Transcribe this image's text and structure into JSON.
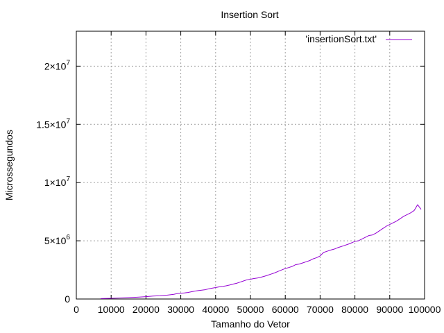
{
  "chart_data": {
    "type": "line",
    "title": "Insertion Sort",
    "xlabel": "Tamanho do Vetor",
    "ylabel": "Microssegundos",
    "xlim": [
      0,
      100000
    ],
    "ylim": [
      0,
      23000000
    ],
    "grid": true,
    "legend_position": "top-right",
    "x_ticks": [
      {
        "value": 0,
        "label": "0"
      },
      {
        "value": 10000,
        "label": "10000"
      },
      {
        "value": 20000,
        "label": "20000"
      },
      {
        "value": 30000,
        "label": "30000"
      },
      {
        "value": 40000,
        "label": "40000"
      },
      {
        "value": 50000,
        "label": "50000"
      },
      {
        "value": 60000,
        "label": "60000"
      },
      {
        "value": 70000,
        "label": "70000"
      },
      {
        "value": 80000,
        "label": "80000"
      },
      {
        "value": 90000,
        "label": "90000"
      },
      {
        "value": 100000,
        "label": "100000"
      }
    ],
    "y_ticks": [
      {
        "value": 0,
        "mantissa": "0",
        "exponent": ""
      },
      {
        "value": 5000000,
        "mantissa": "5×10",
        "exponent": "6"
      },
      {
        "value": 10000000,
        "mantissa": "1×10",
        "exponent": "7"
      },
      {
        "value": 15000000,
        "mantissa": "1.5×10",
        "exponent": "7"
      },
      {
        "value": 20000000,
        "mantissa": "2×10",
        "exponent": "7"
      }
    ],
    "series": [
      {
        "name": "'insertionSort.txt'",
        "color": "#9400d3",
        "points": [
          [
            7000,
            40000
          ],
          [
            10000,
            60000
          ],
          [
            12000,
            80000
          ],
          [
            15000,
            120000
          ],
          [
            18000,
            160000
          ],
          [
            20000,
            200000
          ],
          [
            22000,
            250000
          ],
          [
            24000,
            280000
          ],
          [
            26000,
            330000
          ],
          [
            28000,
            400000
          ],
          [
            29000,
            470000
          ],
          [
            30000,
            500000
          ],
          [
            31000,
            520000
          ],
          [
            32000,
            560000
          ],
          [
            33000,
            620000
          ],
          [
            34000,
            680000
          ],
          [
            35000,
            720000
          ],
          [
            36000,
            760000
          ],
          [
            37000,
            800000
          ],
          [
            38000,
            870000
          ],
          [
            39000,
            930000
          ],
          [
            40000,
            980000
          ],
          [
            41000,
            1040000
          ],
          [
            42000,
            1080000
          ],
          [
            43000,
            1130000
          ],
          [
            44000,
            1200000
          ],
          [
            45000,
            1280000
          ],
          [
            46000,
            1350000
          ],
          [
            47000,
            1450000
          ],
          [
            48000,
            1550000
          ],
          [
            49000,
            1650000
          ],
          [
            50000,
            1700000
          ],
          [
            51000,
            1760000
          ],
          [
            52000,
            1800000
          ],
          [
            53000,
            1870000
          ],
          [
            54000,
            1950000
          ],
          [
            55000,
            2050000
          ],
          [
            56000,
            2150000
          ],
          [
            57000,
            2250000
          ],
          [
            58000,
            2380000
          ],
          [
            59000,
            2500000
          ],
          [
            60000,
            2620000
          ],
          [
            61000,
            2700000
          ],
          [
            62000,
            2800000
          ],
          [
            63000,
            2950000
          ],
          [
            64000,
            3000000
          ],
          [
            65000,
            3100000
          ],
          [
            66000,
            3200000
          ],
          [
            67000,
            3300000
          ],
          [
            68000,
            3450000
          ],
          [
            69000,
            3550000
          ],
          [
            70000,
            3700000
          ],
          [
            70500,
            3850000
          ],
          [
            71000,
            4000000
          ],
          [
            72000,
            4100000
          ],
          [
            73000,
            4200000
          ],
          [
            74000,
            4280000
          ],
          [
            75000,
            4400000
          ],
          [
            76000,
            4500000
          ],
          [
            77000,
            4600000
          ],
          [
            78000,
            4700000
          ],
          [
            79000,
            4820000
          ],
          [
            80000,
            4950000
          ],
          [
            81000,
            5000000
          ],
          [
            82000,
            5150000
          ],
          [
            83000,
            5300000
          ],
          [
            84000,
            5450000
          ],
          [
            85000,
            5500000
          ],
          [
            86000,
            5650000
          ],
          [
            87000,
            5850000
          ],
          [
            88000,
            6050000
          ],
          [
            89000,
            6250000
          ],
          [
            90000,
            6400000
          ],
          [
            91000,
            6550000
          ],
          [
            92000,
            6700000
          ],
          [
            93000,
            6900000
          ],
          [
            94000,
            7100000
          ],
          [
            95000,
            7250000
          ],
          [
            96000,
            7400000
          ],
          [
            97000,
            7600000
          ],
          [
            98000,
            8100000
          ],
          [
            99000,
            7700000
          ]
        ]
      }
    ]
  }
}
